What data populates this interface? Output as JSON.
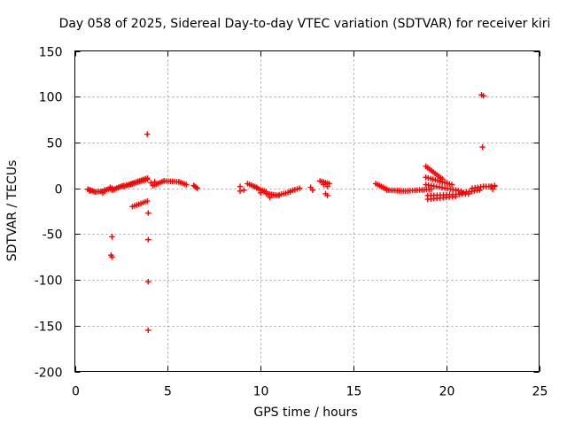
{
  "chart_data": {
    "type": "scatter",
    "title": "Day 058 of 2025, Sidereal Day-to-day VTEC variation (SDTVAR) for receiver kiri",
    "xlabel": "GPS time / hours",
    "ylabel": "SDTVAR / TECUs",
    "xlim": [
      0,
      25
    ],
    "ylim": [
      -200,
      150
    ],
    "xticks": [
      0,
      5,
      10,
      15,
      20,
      25
    ],
    "yticks": [
      150,
      100,
      50,
      0,
      -50,
      -100,
      -150,
      -200
    ],
    "grid": true,
    "marker": "plus",
    "color": "#ff0000",
    "segments": [
      {
        "x0": 0.7,
        "y0": -1,
        "x1": 1.1,
        "y1": -4,
        "n": 6
      },
      {
        "x0": 1.1,
        "y0": -4,
        "x1": 1.6,
        "y1": -3,
        "n": 6
      },
      {
        "x0": 1.6,
        "y0": -2,
        "x1": 2.0,
        "y1": 0,
        "n": 5
      },
      {
        "x0": 2.0,
        "y0": -2,
        "x1": 2.6,
        "y1": 3,
        "n": 8
      },
      {
        "x0": 2.6,
        "y0": 2,
        "x1": 3.2,
        "y1": 6,
        "n": 8
      },
      {
        "x0": 3.0,
        "y0": 4,
        "x1": 3.9,
        "y1": 10,
        "n": 10
      },
      {
        "x0": 3.3,
        "y0": 7,
        "x1": 3.9,
        "y1": 11,
        "n": 7
      },
      {
        "x0": 3.1,
        "y0": -20,
        "x1": 3.9,
        "y1": -14,
        "n": 8
      },
      {
        "x0": 4.2,
        "y0": 3,
        "x1": 4.8,
        "y1": 8,
        "n": 7
      },
      {
        "x0": 4.8,
        "y0": 8,
        "x1": 5.6,
        "y1": 7,
        "n": 8
      },
      {
        "x0": 5.6,
        "y0": 7,
        "x1": 6.0,
        "y1": 4,
        "n": 5
      },
      {
        "x0": 6.4,
        "y0": 3,
        "x1": 6.6,
        "y1": 0,
        "n": 4
      },
      {
        "x0": 9.3,
        "y0": 5,
        "x1": 9.8,
        "y1": 1,
        "n": 6
      },
      {
        "x0": 9.8,
        "y0": 0,
        "x1": 10.3,
        "y1": -4,
        "n": 6
      },
      {
        "x0": 10.3,
        "y0": -6,
        "x1": 11.0,
        "y1": -8,
        "n": 8
      },
      {
        "x0": 11.0,
        "y0": -7,
        "x1": 11.6,
        "y1": -4,
        "n": 6
      },
      {
        "x0": 11.6,
        "y0": -3,
        "x1": 12.1,
        "y1": 0,
        "n": 5
      },
      {
        "x0": 13.2,
        "y0": 8,
        "x1": 13.7,
        "y1": 5,
        "n": 6
      },
      {
        "x0": 16.2,
        "y0": 5,
        "x1": 16.8,
        "y1": -1,
        "n": 7
      },
      {
        "x0": 16.8,
        "y0": -2,
        "x1": 17.8,
        "y1": -3,
        "n": 10
      },
      {
        "x0": 17.8,
        "y0": -3,
        "x1": 19.2,
        "y1": -1,
        "n": 12
      },
      {
        "x0": 18.9,
        "y0": 24,
        "x1": 19.8,
        "y1": 10,
        "n": 10
      },
      {
        "x0": 18.9,
        "y0": 12,
        "x1": 20.3,
        "y1": 4,
        "n": 12
      },
      {
        "x0": 18.9,
        "y0": 4,
        "x1": 20.8,
        "y1": -3,
        "n": 14
      },
      {
        "x0": 19.0,
        "y0": -8,
        "x1": 21.2,
        "y1": -6,
        "n": 14
      },
      {
        "x0": 19.0,
        "y0": -12,
        "x1": 20.5,
        "y1": -9,
        "n": 10
      },
      {
        "x0": 20.8,
        "y0": -5,
        "x1": 21.8,
        "y1": -2,
        "n": 8
      },
      {
        "x0": 21.4,
        "y0": 0,
        "x1": 22.0,
        "y1": 2,
        "n": 5
      },
      {
        "x0": 22.0,
        "y0": 2,
        "x1": 22.6,
        "y1": 2,
        "n": 5
      }
    ],
    "points": [
      {
        "x": 0.8,
        "y": -3
      },
      {
        "x": 1.5,
        "y": -5
      },
      {
        "x": 1.9,
        "y": 1
      },
      {
        "x": 2.0,
        "y": -53
      },
      {
        "x": 1.95,
        "y": -73
      },
      {
        "x": 2.0,
        "y": -75
      },
      {
        "x": 3.9,
        "y": 59
      },
      {
        "x": 3.95,
        "y": -27
      },
      {
        "x": 3.95,
        "y": -56
      },
      {
        "x": 3.95,
        "y": -102
      },
      {
        "x": 3.95,
        "y": -155
      },
      {
        "x": 4.1,
        "y": 6
      },
      {
        "x": 4.3,
        "y": 7
      },
      {
        "x": 8.9,
        "y": 2
      },
      {
        "x": 8.9,
        "y": -3
      },
      {
        "x": 9.1,
        "y": -2
      },
      {
        "x": 10.0,
        "y": -5
      },
      {
        "x": 10.5,
        "y": -10
      },
      {
        "x": 12.8,
        "y": -2
      },
      {
        "x": 12.7,
        "y": 1
      },
      {
        "x": 13.5,
        "y": -6
      },
      {
        "x": 13.6,
        "y": -8
      },
      {
        "x": 13.4,
        "y": 4
      },
      {
        "x": 13.6,
        "y": 2
      },
      {
        "x": 21.9,
        "y": 102
      },
      {
        "x": 22.0,
        "y": 101
      },
      {
        "x": 21.95,
        "y": 45
      },
      {
        "x": 22.4,
        "y": 2
      },
      {
        "x": 22.5,
        "y": -1
      },
      {
        "x": 22.6,
        "y": 3
      }
    ]
  }
}
